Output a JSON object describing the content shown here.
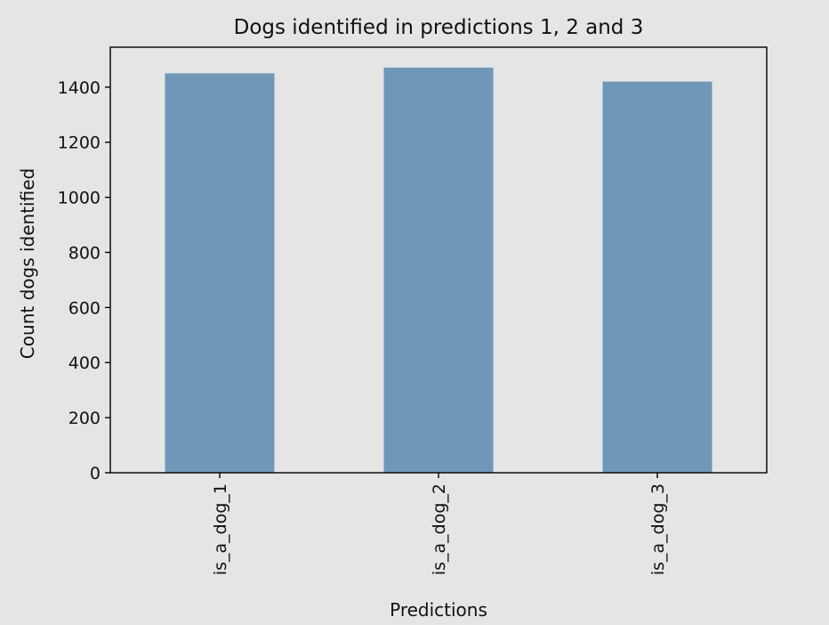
{
  "chart_data": {
    "type": "bar",
    "title": "Dogs identified in predictions 1, 2 and 3",
    "xlabel": "Predictions",
    "ylabel": "Count dogs identified",
    "categories": [
      "is_a_dog_1",
      "is_a_dog_2",
      "is_a_dog_3"
    ],
    "values": [
      1450,
      1471,
      1420
    ],
    "ylim": [
      0,
      1545
    ],
    "yticks": [
      0,
      200,
      400,
      600,
      800,
      1000,
      1200,
      1400
    ],
    "grid": false,
    "legend": "none",
    "bar_color": "#6f97b8",
    "background_color": "#e5e5e5",
    "axes_color": "#000000"
  }
}
